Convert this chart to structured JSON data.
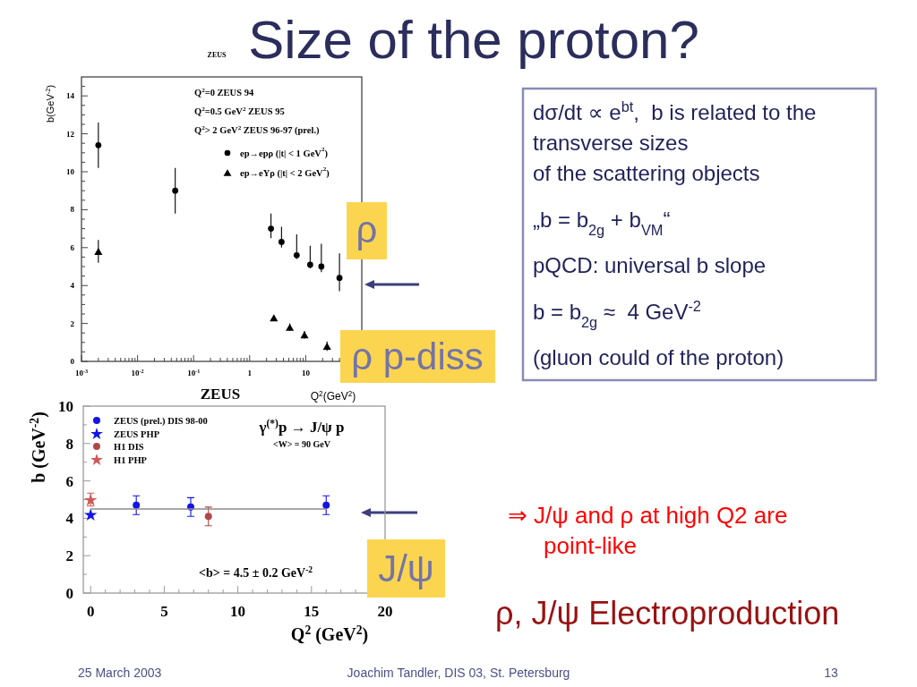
{
  "chart_data": [
    {
      "type": "other",
      "title": "Size of the proton?",
      "annotations": [
        "dσ/dt ∝ e$^{bt}$,  b is related to the",
        "transverse sizes",
        "of the scattering objects",
        "„b = b$_{2g}$ + b$_{VM}$“",
        "pQCD: universal b slope",
        "b = b$_{2g}$ ≈  4 GeV$^{-2}$",
        "(gluon could of the proton)",
        "⇒ J/ψ and ρ at high Q2 are",
        "point-like",
        "ρ, J/ψ Electroproduction",
        "25 March 2003",
        "Joachim Tandler, DIS 03, St. Petersburg",
        "13"
      ]
    },
    {
      "type": "scatter",
      "log": "x",
      "xlim": [
        0.001,
        100
      ],
      "ylim": [
        0,
        15
      ],
      "xticks": [
        {
          "value": 0.001,
          "label": "10$^{-3}$"
        },
        {
          "value": 0.002,
          "label": null
        },
        {
          "value": 0.003,
          "label": null
        },
        {
          "value": 0.004,
          "label": null
        },
        {
          "value": 0.005,
          "label": null
        },
        {
          "value": 0.006,
          "label": null
        },
        {
          "value": 0.007,
          "label": null
        },
        {
          "value": 0.008,
          "label": null
        },
        {
          "value": 0.009,
          "label": null
        },
        {
          "value": 0.01,
          "label": "10$^{-2}$"
        },
        {
          "value": 0.02,
          "label": null
        },
        {
          "value": 0.03,
          "label": null
        },
        {
          "value": 0.04,
          "label": null
        },
        {
          "value": 0.05,
          "label": null
        },
        {
          "value": 0.06,
          "label": null
        },
        {
          "value": 0.07,
          "label": null
        },
        {
          "value": 0.08,
          "label": null
        },
        {
          "value": 0.09,
          "label": null
        },
        {
          "value": 0.1,
          "label": "10$^{-1}$"
        },
        {
          "value": 0.2,
          "label": null
        },
        {
          "value": 0.3,
          "label": null
        },
        {
          "value": 0.4,
          "label": null
        },
        {
          "value": 0.5,
          "label": null
        },
        {
          "value": 0.6,
          "label": null
        },
        {
          "value": 0.7,
          "label": null
        },
        {
          "value": 0.8,
          "label": null
        },
        {
          "value": 0.9,
          "label": null
        },
        1,
        {
          "value": 2,
          "label": null
        },
        {
          "value": 3,
          "label": null
        },
        {
          "value": 4,
          "label": null
        },
        {
          "value": 5,
          "label": null
        },
        {
          "value": 6,
          "label": null
        },
        {
          "value": 7,
          "label": null
        },
        {
          "value": 8,
          "label": null
        },
        {
          "value": 9,
          "label": null
        },
        10,
        {
          "value": 20,
          "label": null
        },
        {
          "value": 30,
          "label": null
        },
        {
          "value": 40,
          "label": null
        },
        {
          "value": 50,
          "label": null
        },
        {
          "value": 60,
          "label": null
        },
        {
          "value": 70,
          "label": null
        },
        {
          "value": 80,
          "label": null
        },
        {
          "value": 90,
          "label": null
        }
      ],
      "yticks": [
        0,
        {
          "value": 0.5,
          "label": null
        },
        {
          "value": 1,
          "label": null
        },
        {
          "value": 1.5,
          "label": null
        },
        2,
        {
          "value": 2.5,
          "label": null
        },
        {
          "value": 3,
          "label": null
        },
        {
          "value": 3.5,
          "label": null
        },
        4,
        {
          "value": 4.5,
          "label": null
        },
        {
          "value": 5,
          "label": null
        },
        {
          "value": 5.5,
          "label": null
        },
        6,
        {
          "value": 6.5,
          "label": null
        },
        {
          "value": 7,
          "label": null
        },
        {
          "value": 7.5,
          "label": null
        },
        8,
        {
          "value": 8.5,
          "label": null
        },
        {
          "value": 9,
          "label": null
        },
        {
          "value": 9.5,
          "label": null
        },
        10,
        {
          "value": 10.5,
          "label": null
        },
        {
          "value": 11,
          "label": null
        },
        {
          "value": 11.5,
          "label": null
        },
        12,
        {
          "value": 12.5,
          "label": null
        },
        {
          "value": 13,
          "label": null
        },
        {
          "value": 13.5,
          "label": null
        },
        14,
        {
          "value": 14.5,
          "label": null
        }
      ],
      "xlabel": "Q$^{2}$(GeV$^{2}$)",
      "ylabel": "b(GeV$^{-2}$)",
      "legend": "top right",
      "series": [
        {
          "name": "ep→epρ (|t| < 1 GeV$^{2}$)",
          "color": "#000000",
          "marker": "circle",
          "x": [
            0.002,
            0.047,
            2.4,
            3.7,
            6.9,
            12,
            19,
            40
          ],
          "values": [
            11.4,
            9.0,
            7.0,
            6.3,
            5.6,
            5.1,
            5.0,
            4.4
          ],
          "errors": [
            1.2,
            1.2,
            [
              6.5,
              7.8
            ],
            [
              6.0,
              7.1
            ],
            [
              5.4,
              6.7
            ],
            [
              4.9,
              6.1
            ],
            [
              4.7,
              6.2
            ],
            [
              3.7,
              5.7
            ]
          ]
        },
        {
          "name": "ep→eYρ (|t| < 2 GeV$^{2}$)",
          "color": "#000000",
          "marker": "triangle",
          "x": [
            0.002,
            2.7,
            5.2,
            9.5,
            24
          ],
          "values": [
            5.8,
            2.3,
            1.8,
            1.4,
            0.8
          ],
          "errors": [
            0.6,
            null,
            0.2,
            0.2,
            0.25
          ]
        }
      ],
      "annotations": [
        "ZEUS",
        "Q$^{2}$=0 ZEUS 94",
        "Q$^{2}$=0.5 GeV$^{2}$ ZEUS 95",
        "Q$^{2}$> 2 GeV$^{2}$ ZEUS 96-97 (prel.)",
        "ZEUS",
        "ρ",
        "ρ p-diss"
      ]
    },
    {
      "type": "scatter",
      "xlim": [
        -0.5,
        20
      ],
      "ylim": [
        0,
        10
      ],
      "xticks": [
        0,
        {
          "value": 1,
          "label": null
        },
        {
          "value": 2,
          "label": null
        },
        {
          "value": 3,
          "label": null
        },
        {
          "value": 4,
          "label": null
        },
        5,
        {
          "value": 6,
          "label": null
        },
        {
          "value": 7,
          "label": null
        },
        {
          "value": 8,
          "label": null
        },
        {
          "value": 9,
          "label": null
        },
        10,
        {
          "value": 11,
          "label": null
        },
        {
          "value": 12,
          "label": null
        },
        {
          "value": 13,
          "label": null
        },
        {
          "value": 14,
          "label": null
        },
        15,
        {
          "value": 16,
          "label": null
        },
        {
          "value": 17,
          "label": null
        },
        {
          "value": 18,
          "label": null
        },
        {
          "value": 19,
          "label": null
        },
        20
      ],
      "yticks": [
        0,
        {
          "value": 1,
          "label": null
        },
        2,
        {
          "value": 3,
          "label": null
        },
        4,
        {
          "value": 5,
          "label": null
        },
        6,
        {
          "value": 7,
          "label": null
        },
        8,
        {
          "value": 9,
          "label": null
        },
        10
      ],
      "xlabel": "Q$^{2}$ (GeV$^{2}$)",
      "ylabel": "b (GeV$^{-2}$)",
      "legend": "top left",
      "series": [
        {
          "name": "ZEUS (prel.) DIS 98-00",
          "color": "#1414e6",
          "marker": "circle",
          "x": [
            3.1,
            6.8,
            16
          ],
          "values": [
            4.7,
            4.6,
            4.7
          ],
          "errors": [
            0.5,
            0.5,
            0.5
          ]
        },
        {
          "name": "ZEUS PHP",
          "color": "#1414e6",
          "marker": "star",
          "x": [
            0
          ],
          "values": [
            4.2
          ]
        },
        {
          "name": "H1 DIS",
          "color": "#b04848",
          "marker": "circle",
          "x": [
            8
          ],
          "values": [
            4.1
          ],
          "errors": [
            0.5
          ]
        },
        {
          "name": "H1 PHP",
          "color": "#d05858",
          "marker": "star",
          "x": [
            0
          ],
          "values": [
            5.0
          ],
          "errors": [
            0.35
          ]
        },
        {
          "type": "line",
          "color": "#8c8c8c",
          "marker": "none",
          "x": [
            0,
            16
          ],
          "values": [
            4.5,
            4.5
          ]
        }
      ],
      "annotations": [
        "γ$^{(*)}$p → J/ψ p",
        "<W> = 90 GeV",
        "<b> = 4.5 ± 0.2 GeV$^{-2}$",
        "J/ψ"
      ]
    }
  ]
}
